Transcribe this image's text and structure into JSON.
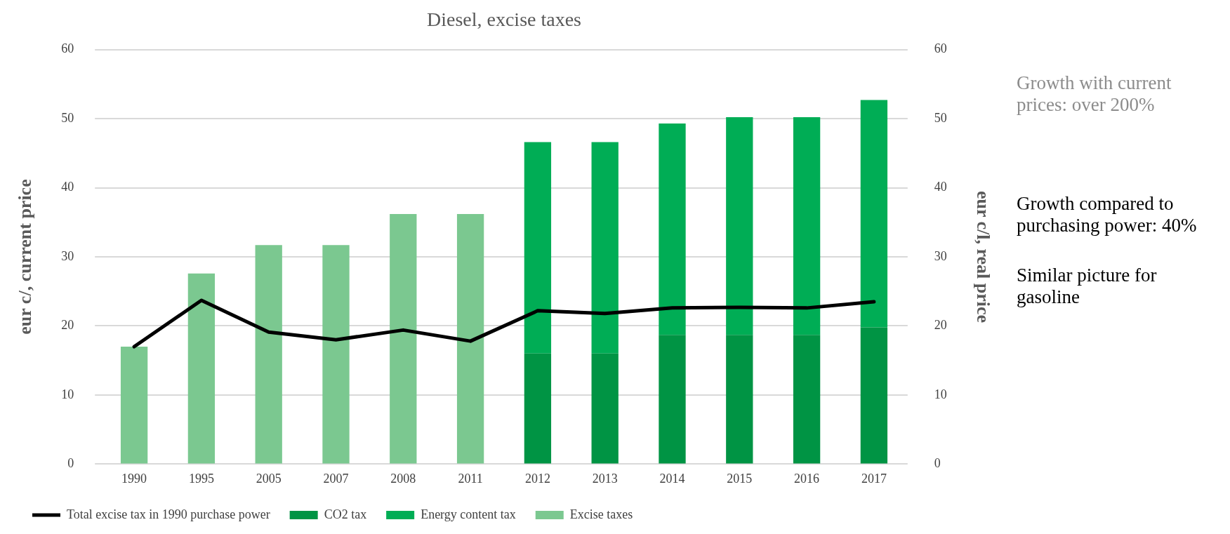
{
  "chart_data": {
    "type": "bar",
    "title": "Diesel, excise taxes",
    "ylabel": "eur c/, current price",
    "y2label": "eur c/l, real price",
    "categories": [
      "1990",
      "1995",
      "2005",
      "2007",
      "2008",
      "2011",
      "2012",
      "2013",
      "2014",
      "2015",
      "2016",
      "2017"
    ],
    "stacked": true,
    "series": [
      {
        "name": "CO2 tax",
        "color": "#009444",
        "values": [
          null,
          null,
          null,
          null,
          null,
          null,
          16,
          16,
          18.7,
          18.7,
          18.7,
          19.8
        ]
      },
      {
        "name": "Energy content tax",
        "color": "#00ad55",
        "values": [
          null,
          null,
          null,
          null,
          null,
          null,
          30.6,
          30.6,
          30.6,
          31.5,
          31.5,
          32.9
        ]
      },
      {
        "name": "Excise taxes",
        "color": "#7bc890",
        "values": [
          17,
          27.6,
          31.7,
          31.7,
          36.2,
          36.2,
          null,
          null,
          null,
          null,
          null,
          null
        ]
      },
      {
        "name": "Total excise tax in 1990 purchase power",
        "type": "line",
        "axis": "y2",
        "color": "#000000",
        "values": [
          17,
          23.7,
          19.1,
          18,
          19.4,
          17.8,
          22.2,
          21.8,
          22.6,
          22.7,
          22.6,
          23.5
        ]
      }
    ],
    "ylim": [
      0,
      60
    ],
    "yticks": [
      0,
      10,
      20,
      30,
      40,
      50,
      60
    ],
    "y2lim": [
      0,
      60
    ],
    "y2ticks": [
      0,
      10,
      20,
      30,
      40,
      50,
      60
    ],
    "grid": "y",
    "legend": "bottom",
    "marker": "none",
    "line_style": "solid",
    "annotations": [
      "Growth with current prices:  over 200%",
      "Growth compared to purchasing power: 40%",
      "Similar picture for gasoline"
    ]
  }
}
